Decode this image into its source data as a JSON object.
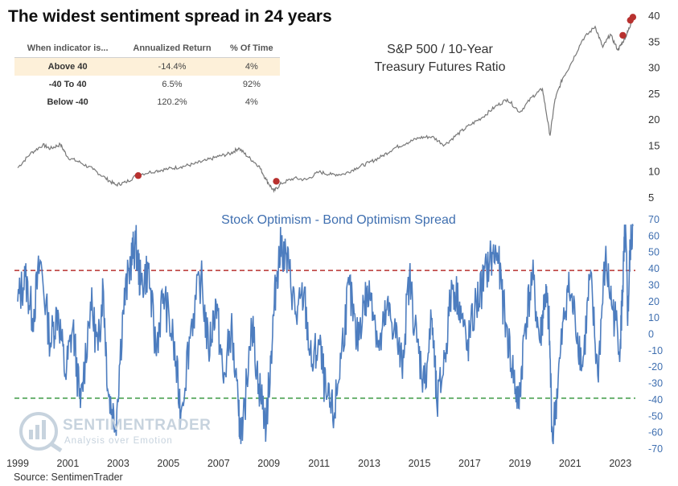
{
  "title": "The widest sentiment spread in 24 years",
  "source": "Source: SentimenTrader",
  "watermark": {
    "name": "SENTIMENTRADER",
    "tagline": "Analysis over Emotion"
  },
  "table": {
    "headers": [
      "When indicator is...",
      "Annualized Return",
      "% Of Time"
    ],
    "rows": [
      {
        "label": "Above 40",
        "ret": "-14.4%",
        "time": "4%",
        "highlight": true
      },
      {
        "label": "-40 To 40",
        "ret": "6.5%",
        "time": "92%",
        "highlight": false
      },
      {
        "label": "Below -40",
        "ret": "120.2%",
        "time": "4%",
        "highlight": false
      }
    ]
  },
  "colors": {
    "ratio_line": "#777777",
    "spread_line": "#4d7dbf",
    "marker": "#b8312f",
    "upper_threshold": "#b8312f",
    "lower_threshold": "#3d9a45",
    "highlight_row": "#fdf0d9"
  },
  "chart_data": [
    {
      "type": "line",
      "title": "S&P 500 / 10-Year\nTreasury Futures Ratio",
      "title_lines": [
        "S&P 500 / 10-Year",
        "Treasury Futures Ratio"
      ],
      "ylim": [
        5,
        40
      ],
      "yticks": [
        "5",
        "10",
        "15",
        "20",
        "25",
        "30",
        "35",
        "40"
      ],
      "ytick_values": [
        5,
        10,
        15,
        20,
        25,
        30,
        35,
        40
      ],
      "series": [
        {
          "x": [
            1999.0,
            1999.5,
            2000.0,
            2000.3,
            2000.7,
            2001.0,
            2001.5,
            2002.0,
            2002.5,
            2002.9,
            2003.3,
            2003.8,
            2004.5,
            2005.0,
            2005.5,
            2006.0,
            2006.5,
            2007.0,
            2007.5,
            2007.8,
            2008.2,
            2008.6,
            2008.9,
            2009.2,
            2009.5,
            2010.0,
            2010.5,
            2011.0,
            2011.5,
            2012.0,
            2012.5,
            2013.0,
            2013.5,
            2014.0,
            2014.5,
            2015.0,
            2015.5,
            2016.0,
            2016.5,
            2017.0,
            2017.5,
            2018.0,
            2018.5,
            2019.0,
            2019.5,
            2019.9,
            2020.2,
            2020.4,
            2020.7,
            2021.0,
            2021.5,
            2022.0,
            2022.3,
            2022.6,
            2022.9,
            2023.1,
            2023.3,
            2023.45
          ],
          "y": [
            10.8,
            13.5,
            15.2,
            14.5,
            15.3,
            12.8,
            11.8,
            10.5,
            8.8,
            7.5,
            8.0,
            9.5,
            10.2,
            10.6,
            11.0,
            11.5,
            12.2,
            13.0,
            13.6,
            14.6,
            12.8,
            11.2,
            8.5,
            6.3,
            7.8,
            8.8,
            8.5,
            10.0,
            9.5,
            9.6,
            10.8,
            11.8,
            13.0,
            14.6,
            15.6,
            16.6,
            16.8,
            15.2,
            17.2,
            19.0,
            20.5,
            22.5,
            24.0,
            21.5,
            24.5,
            26.0,
            17.0,
            24.0,
            28.0,
            30.5,
            35.5,
            38.0,
            34.0,
            36.5,
            33.5,
            35.0,
            37.0,
            39.0
          ]
        }
      ],
      "markers": [
        {
          "x": 2003.8,
          "y": 9.3
        },
        {
          "x": 2009.3,
          "y": 8.2
        },
        {
          "x": 2023.1,
          "y": 36.3
        },
        {
          "x": 2023.4,
          "y": 39.2
        },
        {
          "x": 2023.5,
          "y": 39.8
        }
      ]
    },
    {
      "type": "line",
      "title": "Stock Optimism - Bond Optimism Spread",
      "ylim": [
        -70,
        70
      ],
      "yticks": [
        "-70",
        "-60",
        "-50",
        "-40",
        "-30",
        "-20",
        "-10",
        "0",
        "10",
        "20",
        "30",
        "40",
        "50",
        "60",
        "70"
      ],
      "ytick_values": [
        -70,
        -60,
        -50,
        -40,
        -30,
        -20,
        -10,
        0,
        10,
        20,
        30,
        40,
        50,
        60,
        70
      ],
      "reference_lines": [
        {
          "y": 39,
          "style": "dashed",
          "color": "upper"
        },
        {
          "y": -39,
          "style": "dashed",
          "color": "lower"
        }
      ],
      "series": [
        {
          "x": [
            1999.0,
            1999.3,
            1999.6,
            1999.9,
            2000.3,
            2000.6,
            2000.9,
            2001.2,
            2001.5,
            2001.9,
            2002.2,
            2002.4,
            2002.6,
            2002.9,
            2003.2,
            2003.5,
            2003.7,
            2003.9,
            2004.2,
            2004.5,
            2004.8,
            2005.2,
            2005.5,
            2005.9,
            2006.3,
            2006.6,
            2006.9,
            2007.2,
            2007.5,
            2007.8,
            2007.95,
            2008.3,
            2008.6,
            2008.9,
            2009.1,
            2009.3,
            2009.5,
            2009.8,
            2010.1,
            2010.4,
            2010.7,
            2011.0,
            2011.3,
            2011.6,
            2011.9,
            2012.2,
            2012.5,
            2012.8,
            2013.1,
            2013.4,
            2013.7,
            2014.0,
            2014.3,
            2014.6,
            2014.9,
            2015.2,
            2015.5,
            2015.7,
            2016.0,
            2016.3,
            2016.6,
            2016.9,
            2017.2,
            2017.5,
            2017.8,
            2018.1,
            2018.4,
            2018.7,
            2018.95,
            2019.2,
            2019.5,
            2019.8,
            2020.0,
            2020.15,
            2020.3,
            2020.6,
            2020.9,
            2021.2,
            2021.5,
            2021.8,
            2022.1,
            2022.4,
            2022.7,
            2023.0,
            2023.1,
            2023.2,
            2023.3,
            2023.4,
            2023.5
          ],
          "y": [
            20,
            35,
            10,
            45,
            -5,
            15,
            -25,
            5,
            -45,
            20,
            -10,
            30,
            -35,
            -55,
            15,
            45,
            55,
            30,
            40,
            -10,
            25,
            -5,
            -48,
            5,
            35,
            -10,
            20,
            -30,
            5,
            -50,
            -65,
            10,
            -30,
            -55,
            -10,
            35,
            55,
            40,
            10,
            25,
            -20,
            -5,
            -40,
            -50,
            -10,
            30,
            -5,
            20,
            25,
            -10,
            15,
            5,
            -20,
            35,
            -5,
            -30,
            10,
            -45,
            -15,
            30,
            20,
            -10,
            15,
            30,
            45,
            50,
            10,
            -20,
            -45,
            5,
            35,
            -5,
            25,
            10,
            -65,
            -15,
            30,
            10,
            -20,
            35,
            -25,
            45,
            15,
            -5,
            30,
            65,
            10,
            55,
            66
          ]
        }
      ]
    }
  ],
  "x_axis": {
    "ticks": [
      "1999",
      "2001",
      "2003",
      "2005",
      "2007",
      "2009",
      "2011",
      "2013",
      "2015",
      "2017",
      "2019",
      "2021",
      "2023"
    ],
    "tick_values": [
      1999,
      2001,
      2003,
      2005,
      2007,
      2009,
      2011,
      2013,
      2015,
      2017,
      2019,
      2021,
      2023
    ],
    "range": [
      1999.0,
      2023.6
    ]
  }
}
